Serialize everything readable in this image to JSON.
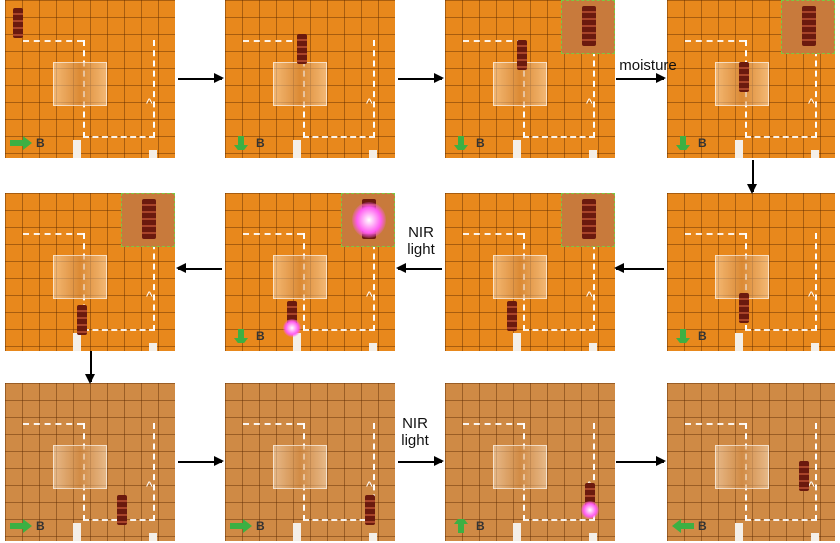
{
  "labels": {
    "moisture": "moisture",
    "nir_light_1": "NIR light",
    "nir_light_2": "NIR light",
    "field": "B"
  },
  "colors": {
    "field_arrow": "#3cb043",
    "background": "#e8881c",
    "nir_glow": "#ff5cf0"
  },
  "panels": [
    {
      "row": 1,
      "col": 1,
      "b_direction": "right"
    },
    {
      "row": 1,
      "col": 2,
      "b_direction": "down"
    },
    {
      "row": 1,
      "col": 3,
      "b_direction": "down",
      "inset": true
    },
    {
      "row": 1,
      "col": 4,
      "b_direction": "down",
      "inset": true
    },
    {
      "row": 2,
      "col": 4,
      "b_direction": "down"
    },
    {
      "row": 2,
      "col": 3,
      "b_direction": "none",
      "inset": true
    },
    {
      "row": 2,
      "col": 2,
      "b_direction": "down",
      "inset": true,
      "nir": true
    },
    {
      "row": 2,
      "col": 1,
      "b_direction": "none",
      "inset": true
    },
    {
      "row": 3,
      "col": 1,
      "b_direction": "right"
    },
    {
      "row": 3,
      "col": 2,
      "b_direction": "right"
    },
    {
      "row": 3,
      "col": 3,
      "b_direction": "up",
      "nir": true
    },
    {
      "row": 3,
      "col": 4,
      "b_direction": "left"
    }
  ]
}
